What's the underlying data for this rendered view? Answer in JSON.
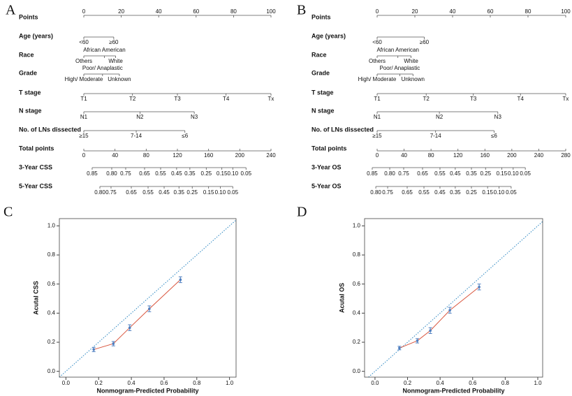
{
  "chart_data": [
    {
      "type": "nomogram",
      "panel": "A",
      "rows": [
        {
          "name": "Points",
          "lim": [
            0,
            100
          ],
          "ticks": [
            0,
            20,
            40,
            60,
            80,
            100
          ]
        },
        {
          "name": "Age (years)",
          "levels": [
            {
              "label": "<60",
              "value": 0
            },
            {
              "label": "≥60",
              "value": 16
            }
          ]
        },
        {
          "name": "Race",
          "levels": [
            {
              "label": "Others",
              "value": 0
            },
            {
              "label": "African American",
              "value": 11
            },
            {
              "label": "White",
              "value": 17
            }
          ]
        },
        {
          "name": "Grade",
          "levels": [
            {
              "label": "High/ Moderate",
              "value": 0
            },
            {
              "label": "Poor/ Anaplastic",
              "value": 10
            },
            {
              "label": "Unknown",
              "value": 19
            }
          ]
        },
        {
          "name": "T stage",
          "levels": [
            {
              "label": "T1",
              "value": 0
            },
            {
              "label": "T2",
              "value": 26
            },
            {
              "label": "T3",
              "value": 50
            },
            {
              "label": "T4",
              "value": 76
            },
            {
              "label": "Tx",
              "value": 100
            }
          ]
        },
        {
          "name": "N stage",
          "levels": [
            {
              "label": "N1",
              "value": 0
            },
            {
              "label": "N2",
              "value": 30
            },
            {
              "label": "N3",
              "value": 59
            }
          ]
        },
        {
          "name": "No. of LNs dissected",
          "levels": [
            {
              "label": "≥15",
              "value": 0
            },
            {
              "label": "7-14",
              "value": 28
            },
            {
              "label": "≤6",
              "value": 54
            }
          ]
        },
        {
          "name": "Total points",
          "lim": [
            0,
            240
          ],
          "ticks": [
            0,
            40,
            80,
            120,
            160,
            200,
            240
          ]
        },
        {
          "name": "3-Year CSS",
          "ticks": [
            {
              "value": 10.7,
              "label": "0.85"
            },
            {
              "value": 35.8,
              "label": "0.80"
            },
            {
              "value": 53.7,
              "label": "0.75"
            },
            {
              "value": 77.9,
              "label": "0.65"
            },
            {
              "value": 98.5,
              "label": "0.55"
            },
            {
              "value": 119,
              "label": "0.45"
            },
            {
              "value": 136,
              "label": "0.35"
            },
            {
              "value": 157,
              "label": "0.25"
            },
            {
              "value": 177,
              "label": "0.15"
            },
            {
              "value": 191,
              "label": "0.10"
            },
            {
              "value": 208,
              "label": "0.05"
            }
          ]
        },
        {
          "name": "5-Year CSS",
          "ticks": [
            {
              "value": 20.6,
              "label": "0.80"
            },
            {
              "value": 34.9,
              "label": "0.75"
            },
            {
              "value": 60.9,
              "label": "0.65"
            },
            {
              "value": 82.4,
              "label": "0.55"
            },
            {
              "value": 103,
              "label": "0.45"
            },
            {
              "value": 122,
              "label": "0.35"
            },
            {
              "value": 139,
              "label": "0.25"
            },
            {
              "value": 160,
              "label": "0.15"
            },
            {
              "value": 175,
              "label": "0.10"
            },
            {
              "value": 191,
              "label": "0.05"
            }
          ]
        }
      ]
    },
    {
      "type": "nomogram",
      "panel": "B",
      "rows": [
        {
          "name": "Points",
          "lim": [
            0,
            100
          ],
          "ticks": [
            0,
            20,
            40,
            60,
            80,
            100
          ]
        },
        {
          "name": "Age (years)",
          "levels": [
            {
              "label": "<60",
              "value": 0
            },
            {
              "label": "≥60",
              "value": 25
            }
          ]
        },
        {
          "name": "Race",
          "levels": [
            {
              "label": "Others",
              "value": 0
            },
            {
              "label": "African American",
              "value": 11
            },
            {
              "label": "White",
              "value": 18
            }
          ]
        },
        {
          "name": "Grade",
          "levels": [
            {
              "label": "High/ Moderate",
              "value": 0
            },
            {
              "label": "Poor/ Anaplastic",
              "value": 12
            },
            {
              "label": "Unknown",
              "value": 19
            }
          ]
        },
        {
          "name": "T stage",
          "levels": [
            {
              "label": "T1",
              "value": 0
            },
            {
              "label": "T2",
              "value": 26
            },
            {
              "label": "T3",
              "value": 51
            },
            {
              "label": "T4",
              "value": 76
            },
            {
              "label": "Tx",
              "value": 100
            }
          ]
        },
        {
          "name": "N stage",
          "levels": [
            {
              "label": "N1",
              "value": 0
            },
            {
              "label": "N2",
              "value": 33
            },
            {
              "label": "N3",
              "value": 64
            }
          ]
        },
        {
          "name": "No. of LNs dissected",
          "levels": [
            {
              "label": "≥15",
              "value": 0
            },
            {
              "label": "7-14",
              "value": 31
            },
            {
              "label": "≤6",
              "value": 62
            }
          ]
        },
        {
          "name": "Total points",
          "lim": [
            0,
            280
          ],
          "ticks": [
            0,
            40,
            80,
            120,
            160,
            200,
            240,
            280
          ]
        },
        {
          "name": "3-Year OS",
          "ticks": [
            {
              "value": -7.3,
              "label": "0.85"
            },
            {
              "value": 18.7,
              "label": "0.80"
            },
            {
              "value": 39.4,
              "label": "0.75"
            },
            {
              "value": 67.4,
              "label": "0.65"
            },
            {
              "value": 93.3,
              "label": "0.55"
            },
            {
              "value": 116,
              "label": "0.45"
            },
            {
              "value": 140,
              "label": "0.35"
            },
            {
              "value": 161,
              "label": "0.25"
            },
            {
              "value": 185,
              "label": "0.15"
            },
            {
              "value": 202,
              "label": "0.10"
            },
            {
              "value": 220,
              "label": "0.05"
            }
          ]
        },
        {
          "name": "5-Year OS",
          "ticks": [
            {
              "value": -2,
              "label": "0.80"
            },
            {
              "value": 15.6,
              "label": "0.75"
            },
            {
              "value": 44.6,
              "label": "0.65"
            },
            {
              "value": 69.5,
              "label": "0.55"
            },
            {
              "value": 93.3,
              "label": "0.45"
            },
            {
              "value": 116,
              "label": "0.35"
            },
            {
              "value": 140,
              "label": "0.25"
            },
            {
              "value": 164,
              "label": "0.15"
            },
            {
              "value": 181,
              "label": "0.10"
            },
            {
              "value": 199,
              "label": "0.05"
            }
          ]
        }
      ]
    },
    {
      "type": "calibration",
      "panel": "C",
      "xlabel": "Nonmogram-Predicted Probability",
      "ylabel": "Acutal CSS",
      "xlim": [
        -0.04,
        1.04
      ],
      "ylim": [
        -0.04,
        1.05
      ],
      "xticks": [
        {
          "value": 0,
          "label": "0.0"
        },
        0.2,
        0.4,
        0.6,
        0.8,
        {
          "value": 1,
          "label": "1.0"
        }
      ],
      "yticks": [
        {
          "value": 0,
          "label": "0.0"
        },
        0.2,
        0.4,
        0.6,
        0.8,
        {
          "value": 1,
          "label": "1.0"
        }
      ],
      "reference_color": "#3a8fc6",
      "series": [
        {
          "color": "#d9553d",
          "marker_color": "#4f7fc0",
          "x": [
            0.17,
            0.29,
            0.39,
            0.51,
            0.7
          ],
          "values": [
            0.15,
            0.19,
            0.3,
            0.43,
            0.63
          ],
          "errors": [
            0.015,
            0.015,
            0.02,
            0.02,
            0.02
          ]
        }
      ]
    },
    {
      "type": "calibration",
      "panel": "D",
      "xlabel": "Nonmogram-Predicted Probability",
      "ylabel": "Acutal OS",
      "xlim": [
        -0.064,
        1.03
      ],
      "ylim": [
        -0.04,
        1.05
      ],
      "xticks": [
        {
          "value": 0,
          "label": "0.0"
        },
        0.2,
        0.4,
        0.6,
        0.8,
        {
          "value": 1,
          "label": "1.0"
        }
      ],
      "yticks": [
        {
          "value": 0,
          "label": "0.0"
        },
        0.2,
        0.4,
        0.6,
        0.8,
        {
          "value": 1,
          "label": "1.0"
        }
      ],
      "reference_color": "#3a8fc6",
      "series": [
        {
          "color": "#d9553d",
          "marker_color": "#4f7fc0",
          "x": [
            0.15,
            0.26,
            0.34,
            0.46,
            0.64
          ],
          "values": [
            0.16,
            0.21,
            0.28,
            0.42,
            0.58
          ],
          "errors": [
            0.012,
            0.015,
            0.02,
            0.02,
            0.02
          ]
        }
      ]
    }
  ]
}
